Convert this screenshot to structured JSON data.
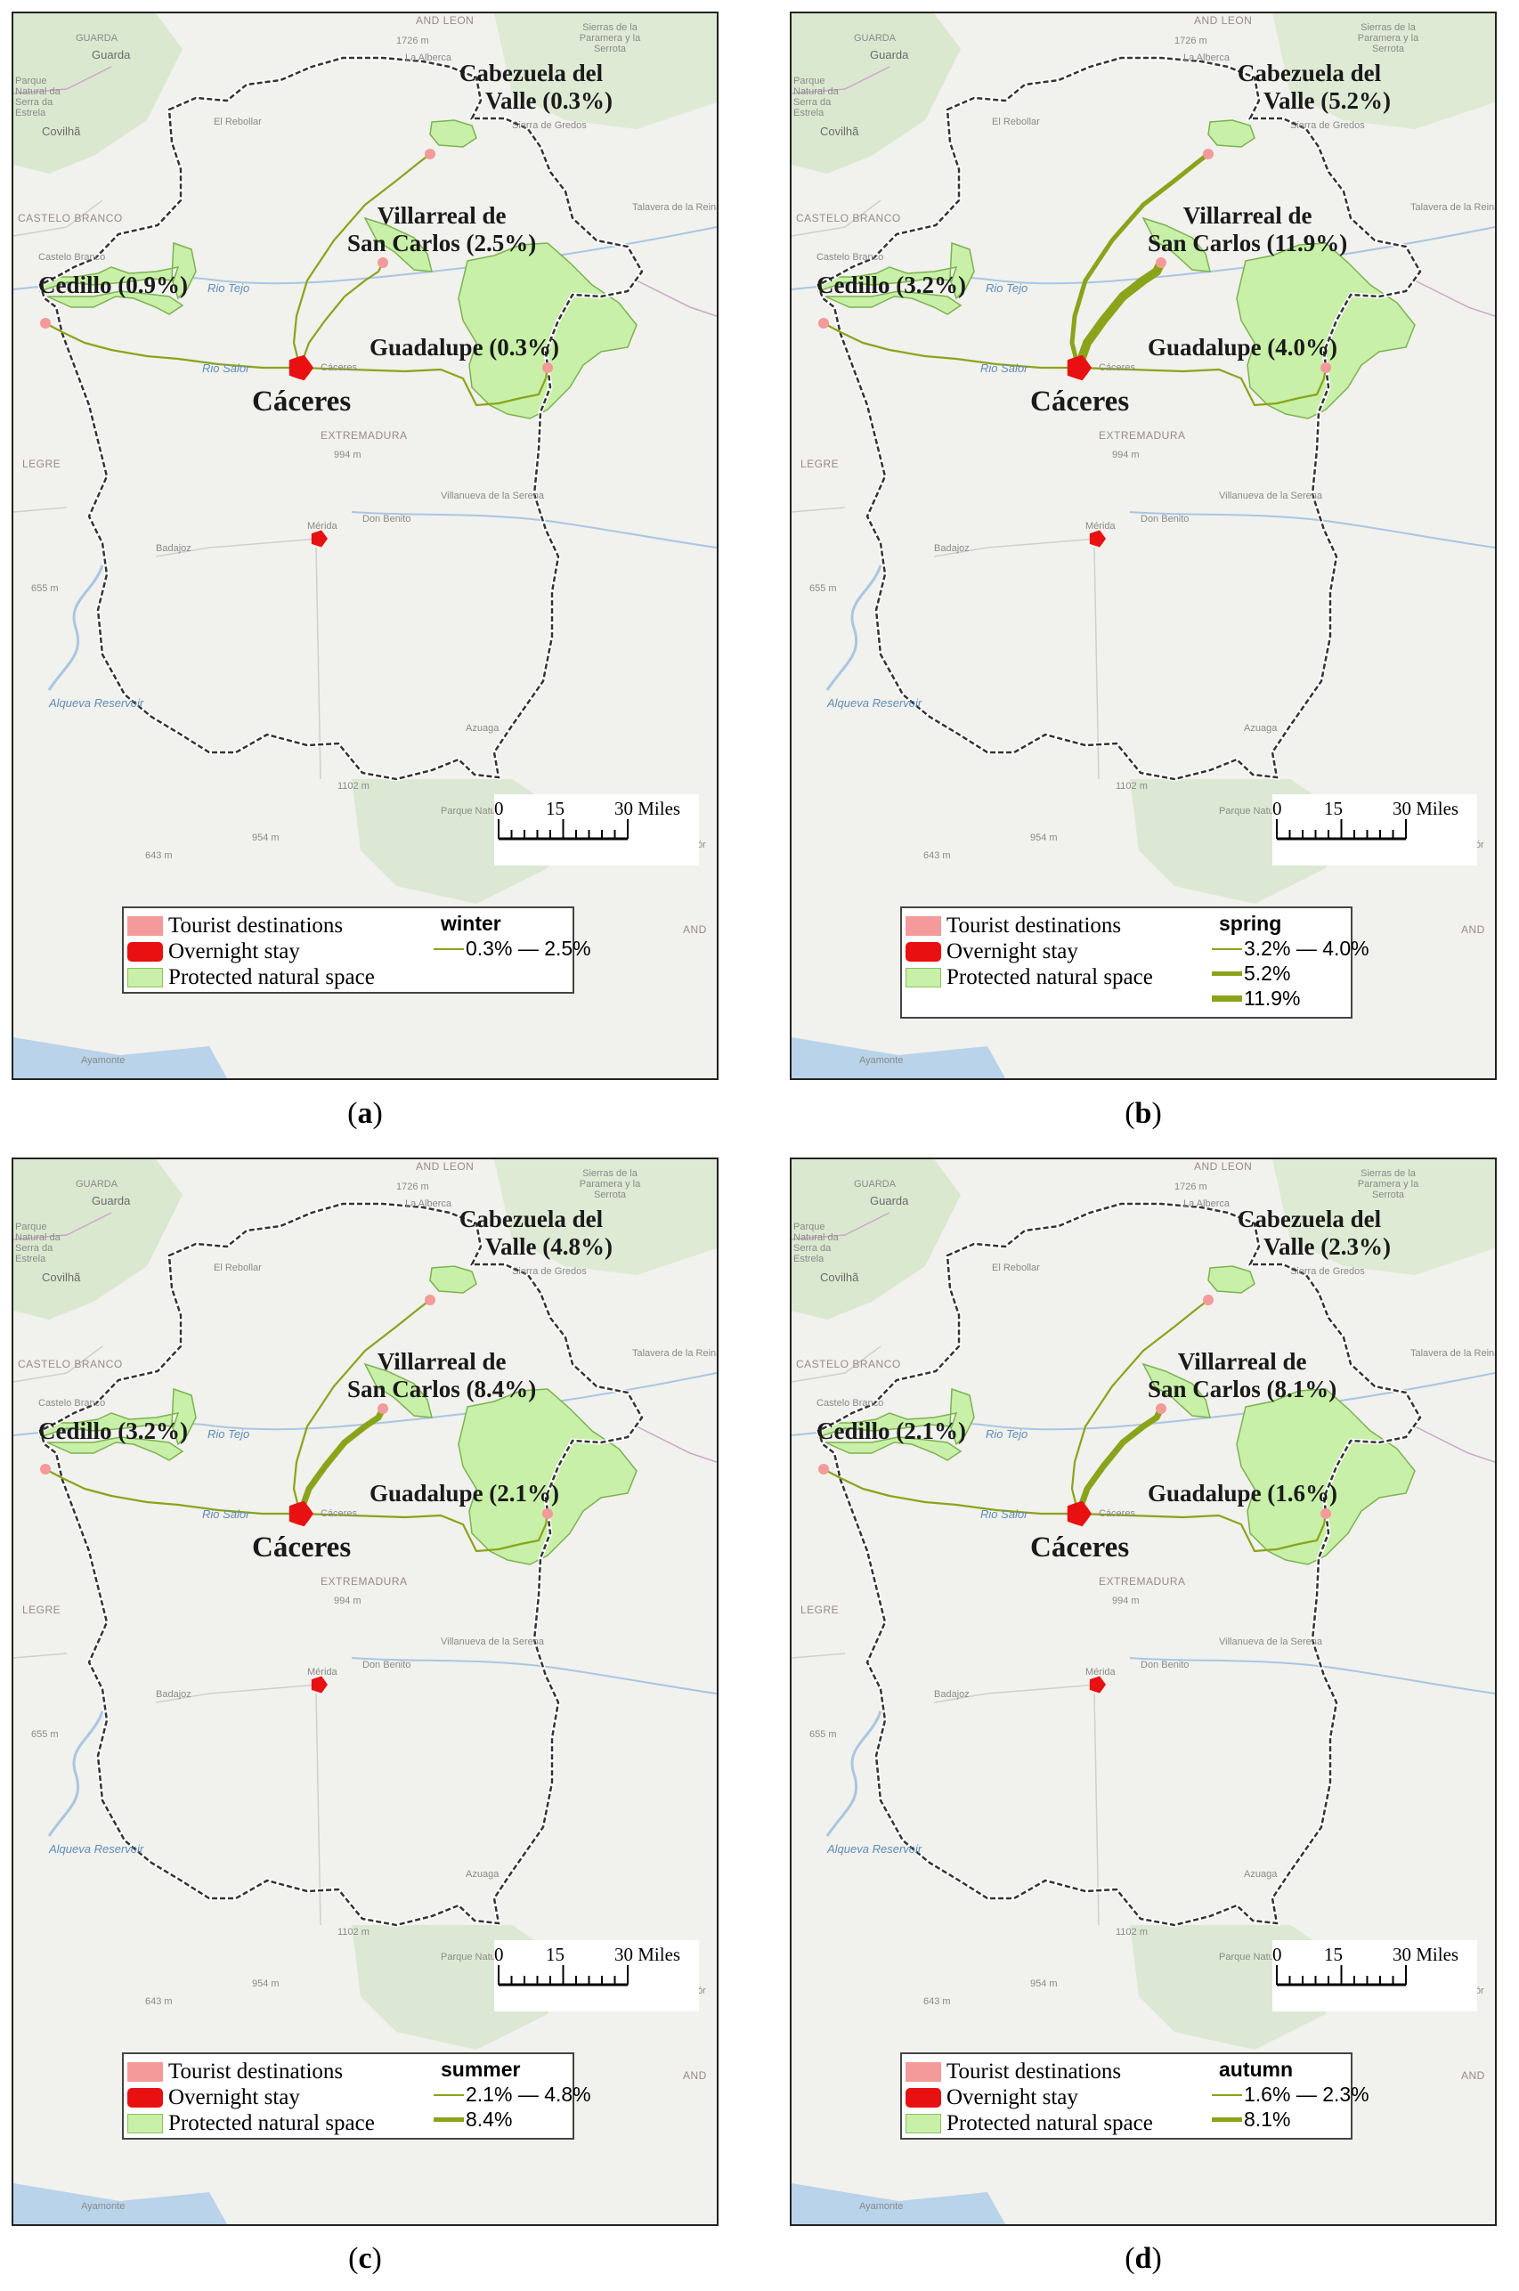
{
  "colors": {
    "tourist_destination": "#f49a9a",
    "overnight_stay": "#e81010",
    "protected_space": "#c8f0a8",
    "route": "#8aa41a",
    "boundary": "#333333"
  },
  "basemap_labels": {
    "guarda": "Guarda",
    "guarda_region": "GUARDA",
    "and_leon": "AND LEON",
    "sierras": "Sierras de la Paramera y la Serrota",
    "peak_1726": "1726 m",
    "la_alberca": "La Alberca",
    "sierra_estrela": "Parque Natural da Serra da Estrela",
    "covilha": "Covilhã",
    "el_rebollar": "El Rebollar",
    "sierra_gredos": "Sierra de Gredos",
    "castelo_branco_region": "CASTELO BRANCO",
    "castelo_branco": "Castelo Branco",
    "talavera": "Talavera de la Reina",
    "rio_tejo": "Rio Tejo",
    "rio_salor": "Rio Salor",
    "caceres_small": "Cáceres",
    "extremadura": "EXTREMADURA",
    "peak_994": "994 m",
    "legre": "LEGRE",
    "villanueva": "Villanueva de la Serena",
    "merida": "Mérida",
    "don_benito": "Don Benito",
    "badajoz": "Badajoz",
    "peak_655": "655 m",
    "alqueva": "Alqueva Reservoir",
    "azuaga": "Azuaga",
    "peak_1102": "1102 m",
    "parque_sierra": "Parque Natural Sierra Norte",
    "peak_954": "954 m",
    "peak_643": "643 m",
    "ayamonte": "Ayamonte",
    "and": "AND",
    "cor": "Cór"
  },
  "legend_labels": {
    "tourist": "Tourist destinations",
    "overnight": "Overnight stay",
    "protected": "Protected natural space"
  },
  "scale": {
    "zero": "0",
    "fifteen": "15",
    "thirty": "30 Miles"
  },
  "overnight_label": "Cáceres",
  "panels": [
    {
      "caption": "a",
      "season": "winter",
      "destinations": {
        "cabezuela": [
          "Cabezuela del",
          "Valle (0.3%)"
        ],
        "villarreal": [
          "Villarreal de",
          "San Carlos (2.5%)"
        ],
        "cedillo": "Cedillo (0.9%)",
        "guadalupe": "Guadalupe (0.3%)"
      },
      "route_share_pct": {
        "cabezuela": 0.3,
        "villarreal": 2.5,
        "cedillo": 0.9,
        "guadalupe": 0.3
      },
      "flow_classes": [
        {
          "label": "0.3% — 2.5%"
        }
      ]
    },
    {
      "caption": "b",
      "season": "spring",
      "destinations": {
        "cabezuela": [
          "Cabezuela del",
          "Valle (5.2%)"
        ],
        "villarreal": [
          "Villarreal de",
          "San Carlos (11.9%)"
        ],
        "cedillo": "Cedillo (3.2%)",
        "guadalupe": "Guadalupe (4.0%)"
      },
      "route_share_pct": {
        "cabezuela": 5.2,
        "villarreal": 11.9,
        "cedillo": 3.2,
        "guadalupe": 4.0
      },
      "flow_classes": [
        {
          "label": "3.2% — 4.0%"
        },
        {
          "label": "5.2%"
        },
        {
          "label": "11.9%"
        }
      ]
    },
    {
      "caption": "c",
      "season": "summer",
      "destinations": {
        "cabezuela": [
          "Cabezuela del",
          "Valle (4.8%)"
        ],
        "villarreal": [
          "Villarreal de",
          "San Carlos (8.4%)"
        ],
        "cedillo": "Cedillo (3.2%)",
        "guadalupe": "Guadalupe (2.1%)"
      },
      "route_share_pct": {
        "cabezuela": 4.8,
        "villarreal": 8.4,
        "cedillo": 3.2,
        "guadalupe": 2.1
      },
      "flow_classes": [
        {
          "label": "2.1% — 4.8%"
        },
        {
          "label": "8.4%"
        }
      ]
    },
    {
      "caption": "d",
      "season": "autumn",
      "destinations": {
        "cabezuela": [
          "Cabezuela del",
          "Valle (2.3%)"
        ],
        "villarreal": [
          "Villarreal de",
          "San Carlos (8.1%)"
        ],
        "cedillo": "Cedillo (2.1%)",
        "guadalupe": "Guadalupe (1.6%)"
      },
      "route_share_pct": {
        "cabezuela": 2.3,
        "villarreal": 8.1,
        "cedillo": 2.1,
        "guadalupe": 1.6
      },
      "flow_classes": [
        {
          "label": "1.6% — 2.3%"
        },
        {
          "label": "8.1%"
        }
      ]
    }
  ]
}
